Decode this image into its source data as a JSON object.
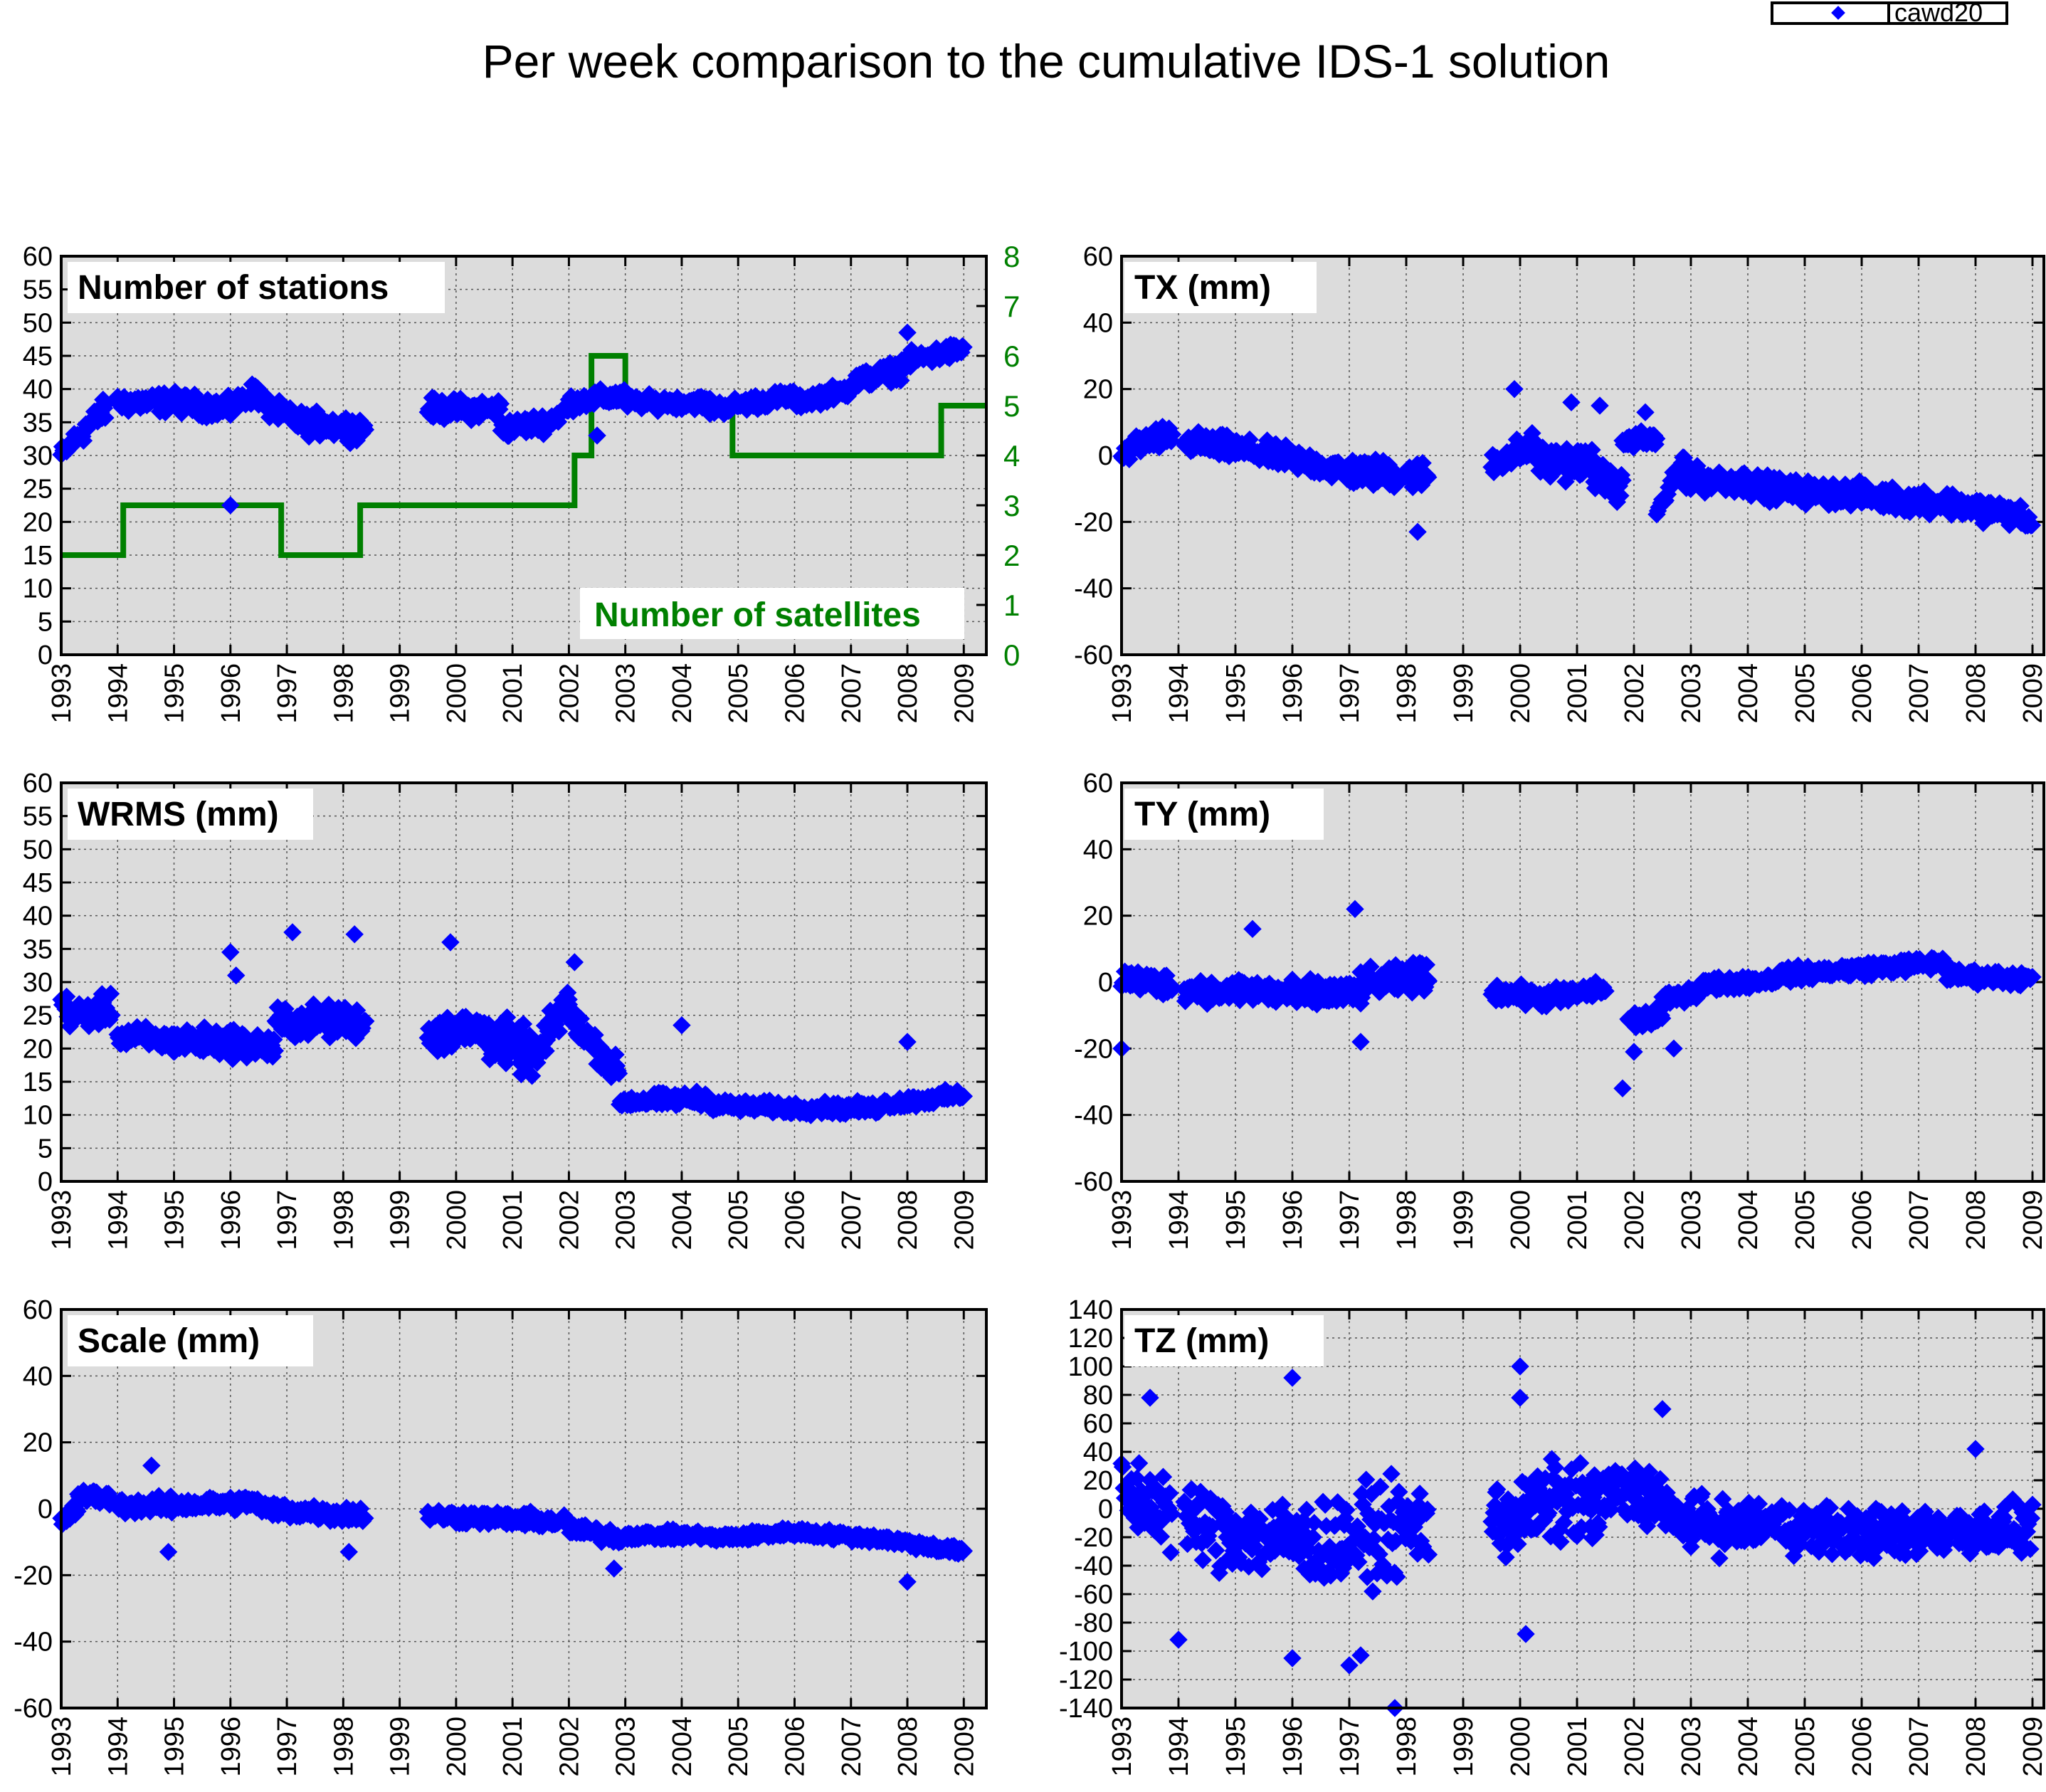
{
  "title": "Per week comparison to the cumulative IDS-1 solution",
  "legend": {
    "label": "cawd20"
  },
  "colors": {
    "points": "#0000ff",
    "satellites": "#008000",
    "plot_bg": "#dcdcdc",
    "grid": "#555555"
  },
  "chart_data": [
    {
      "id": "stations",
      "type": "scatter",
      "label": "Number of stations",
      "xlim": [
        1993,
        2009.4
      ],
      "ylim": [
        0,
        60
      ],
      "x_ticks": [
        "1993",
        "1994",
        "1995",
        "1996",
        "1997",
        "1998",
        "1999",
        "2000",
        "2001",
        "2002",
        "2003",
        "2004",
        "2005",
        "2006",
        "2007",
        "2008",
        "2009"
      ],
      "y_ticks": [
        0,
        5,
        10,
        15,
        20,
        25,
        30,
        35,
        40,
        45,
        50,
        55,
        60
      ],
      "segments": [
        {
          "x0": 1993.0,
          "x1": 1993.3,
          "y0": 30,
          "y1": 33,
          "spread": 2
        },
        {
          "x0": 1993.3,
          "x1": 1993.8,
          "y0": 33,
          "y1": 37,
          "spread": 2.5
        },
        {
          "x0": 1994.0,
          "x1": 1995.0,
          "y0": 38,
          "y1": 38,
          "spread": 2.2
        },
        {
          "x0": 1995.0,
          "x1": 1996.0,
          "y0": 38,
          "y1": 37,
          "spread": 2.2
        },
        {
          "x0": 1996.0,
          "x1": 1996.5,
          "y0": 37,
          "y1": 40,
          "spread": 2.2
        },
        {
          "x0": 1996.5,
          "x1": 1997.2,
          "y0": 38,
          "y1": 35,
          "spread": 2.2
        },
        {
          "x0": 1997.2,
          "x1": 1998.4,
          "y0": 35,
          "y1": 34,
          "spread": 2.5
        },
        {
          "x0": 1999.5,
          "x1": 2000.8,
          "y0": 37,
          "y1": 37,
          "spread": 2.2
        },
        {
          "x0": 2000.8,
          "x1": 2001.6,
          "y0": 34,
          "y1": 35,
          "spread": 2
        },
        {
          "x0": 2001.6,
          "x1": 2002.0,
          "y0": 35,
          "y1": 37,
          "spread": 2
        },
        {
          "x0": 2002.0,
          "x1": 2003.0,
          "y0": 38,
          "y1": 39,
          "spread": 1.8
        },
        {
          "x0": 2003.0,
          "x1": 2004.5,
          "y0": 38,
          "y1": 38,
          "spread": 1.5
        },
        {
          "x0": 2004.5,
          "x1": 2006.0,
          "y0": 37,
          "y1": 39,
          "spread": 1.6
        },
        {
          "x0": 2006.0,
          "x1": 2007.0,
          "y0": 38,
          "y1": 40,
          "spread": 1.6
        },
        {
          "x0": 2007.0,
          "x1": 2007.9,
          "y0": 41,
          "y1": 43,
          "spread": 2
        },
        {
          "x0": 2007.9,
          "x1": 2009.0,
          "y0": 44,
          "y1": 46,
          "spread": 1.8
        }
      ],
      "outliers": [
        [
          1996.0,
          22.5
        ],
        [
          2002.5,
          33
        ],
        [
          2008.0,
          48.5
        ]
      ],
      "satellites": {
        "label": "Number of satellites",
        "ylim": [
          0,
          8
        ],
        "y_ticks": [
          0,
          1,
          2,
          3,
          4,
          5,
          6,
          7,
          8
        ],
        "steps": [
          [
            1993.0,
            2
          ],
          [
            1994.1,
            3
          ],
          [
            1996.9,
            2
          ],
          [
            1998.3,
            3
          ],
          [
            2002.1,
            4
          ],
          [
            2002.4,
            6
          ],
          [
            2003.0,
            5
          ],
          [
            2004.9,
            4
          ],
          [
            2008.6,
            5
          ],
          [
            2009.4,
            5
          ]
        ]
      }
    },
    {
      "id": "tx",
      "type": "scatter",
      "label": "TX (mm)",
      "xlim": [
        1993,
        2009.2
      ],
      "ylim": [
        -60,
        60
      ],
      "x_ticks": [
        "1993",
        "1994",
        "1995",
        "1996",
        "1997",
        "1998",
        "1999",
        "2000",
        "2001",
        "2002",
        "2003",
        "2004",
        "2005",
        "2006",
        "2007",
        "2008",
        "2009"
      ],
      "y_ticks": [
        -60,
        -40,
        -20,
        0,
        20,
        40,
        60
      ],
      "segments": [
        {
          "x0": 1993.0,
          "x1": 1993.2,
          "y0": 0,
          "y1": 2,
          "spread": 4
        },
        {
          "x0": 1993.2,
          "x1": 1993.9,
          "y0": 3,
          "y1": 6,
          "spread": 5
        },
        {
          "x0": 1994.1,
          "x1": 1995.0,
          "y0": 4,
          "y1": 2,
          "spread": 5
        },
        {
          "x0": 1995.0,
          "x1": 1996.0,
          "y0": 2,
          "y1": -1,
          "spread": 5
        },
        {
          "x0": 1996.0,
          "x1": 1997.0,
          "y0": -1,
          "y1": -5,
          "spread": 5
        },
        {
          "x0": 1997.0,
          "x1": 1998.4,
          "y0": -5,
          "y1": -6,
          "spread": 6
        },
        {
          "x0": 1999.5,
          "x1": 2000.3,
          "y0": -2,
          "y1": 3,
          "spread": 6
        },
        {
          "x0": 2000.3,
          "x1": 2001.3,
          "y0": -2,
          "y1": -2,
          "spread": 7
        },
        {
          "x0": 2001.3,
          "x1": 2001.8,
          "y0": -6,
          "y1": -10,
          "spread": 6
        },
        {
          "x0": 2001.8,
          "x1": 2002.4,
          "y0": 4,
          "y1": 5,
          "spread": 4
        },
        {
          "x0": 2002.4,
          "x1": 2002.9,
          "y0": -18,
          "y1": 0,
          "spread": 3
        },
        {
          "x0": 2002.9,
          "x1": 2004.0,
          "y0": -7,
          "y1": -8,
          "spread": 5
        },
        {
          "x0": 2004.0,
          "x1": 2005.5,
          "y0": -9,
          "y1": -12,
          "spread": 5
        },
        {
          "x0": 2005.5,
          "x1": 2007.0,
          "y0": -11,
          "y1": -14,
          "spread": 5
        },
        {
          "x0": 2007.0,
          "x1": 2008.8,
          "y0": -13,
          "y1": -18,
          "spread": 5
        },
        {
          "x0": 2008.8,
          "x1": 2009.0,
          "y0": -19,
          "y1": -21,
          "spread": 3
        }
      ],
      "outliers": [
        [
          1998.2,
          -23
        ],
        [
          1999.9,
          20
        ],
        [
          2000.9,
          16
        ],
        [
          2001.4,
          15
        ],
        [
          2002.2,
          13
        ]
      ]
    },
    {
      "id": "wrms",
      "type": "scatter",
      "label": "WRMS (mm)",
      "xlim": [
        1993,
        2009.4
      ],
      "ylim": [
        0,
        60
      ],
      "x_ticks": [
        "1993",
        "1994",
        "1995",
        "1996",
        "1997",
        "1998",
        "1999",
        "2000",
        "2001",
        "2002",
        "2003",
        "2004",
        "2005",
        "2006",
        "2007",
        "2008",
        "2009"
      ],
      "y_ticks": [
        0,
        5,
        10,
        15,
        20,
        25,
        30,
        35,
        40,
        45,
        50,
        55,
        60
      ],
      "segments": [
        {
          "x0": 1993.0,
          "x1": 1993.3,
          "y0": 27,
          "y1": 24,
          "spread": 3
        },
        {
          "x0": 1993.3,
          "x1": 1993.9,
          "y0": 25,
          "y1": 26,
          "spread": 3
        },
        {
          "x0": 1994.0,
          "x1": 1995.0,
          "y0": 22,
          "y1": 21,
          "spread": 2.5
        },
        {
          "x0": 1995.0,
          "x1": 1996.0,
          "y0": 21,
          "y1": 21,
          "spread": 3
        },
        {
          "x0": 1996.0,
          "x1": 1996.8,
          "y0": 21,
          "y1": 20,
          "spread": 3
        },
        {
          "x0": 1996.8,
          "x1": 1998.4,
          "y0": 24,
          "y1": 24,
          "spread": 3.5
        },
        {
          "x0": 1999.5,
          "x1": 2000.5,
          "y0": 22,
          "y1": 23,
          "spread": 4
        },
        {
          "x0": 2000.5,
          "x1": 2001.4,
          "y0": 22,
          "y1": 19,
          "spread": 5
        },
        {
          "x0": 2001.4,
          "x1": 2002.0,
          "y0": 18,
          "y1": 28,
          "spread": 4
        },
        {
          "x0": 2002.0,
          "x1": 2002.9,
          "y0": 25,
          "y1": 16,
          "spread": 3
        },
        {
          "x0": 2002.9,
          "x1": 2004.5,
          "y0": 12,
          "y1": 12.5,
          "spread": 1.5
        },
        {
          "x0": 2004.5,
          "x1": 2006.0,
          "y0": 11.5,
          "y1": 11,
          "spread": 1.3
        },
        {
          "x0": 2006.0,
          "x1": 2007.5,
          "y0": 11,
          "y1": 11,
          "spread": 1.3
        },
        {
          "x0": 2007.5,
          "x1": 2009.0,
          "y0": 11.5,
          "y1": 13,
          "spread": 1.3
        }
      ],
      "outliers": [
        [
          1996.0,
          34.5
        ],
        [
          1996.1,
          31
        ],
        [
          1997.1,
          37.5
        ],
        [
          1998.2,
          37.2
        ],
        [
          1999.9,
          36
        ],
        [
          2002.1,
          33
        ],
        [
          2004.0,
          23.5
        ],
        [
          2008.0,
          21
        ]
      ]
    },
    {
      "id": "ty",
      "type": "scatter",
      "label": "TY (mm)",
      "xlim": [
        1993,
        2009.2
      ],
      "ylim": [
        -60,
        60
      ],
      "x_ticks": [
        "1993",
        "1994",
        "1995",
        "1996",
        "1997",
        "1998",
        "1999",
        "2000",
        "2001",
        "2002",
        "2003",
        "2004",
        "2005",
        "2006",
        "2007",
        "2008",
        "2009"
      ],
      "y_ticks": [
        -60,
        -40,
        -20,
        0,
        20,
        40,
        60
      ],
      "segments": [
        {
          "x0": 1993.0,
          "x1": 1993.9,
          "y0": 1,
          "y1": -1,
          "spread": 5
        },
        {
          "x0": 1994.1,
          "x1": 1995.0,
          "y0": -2,
          "y1": -3,
          "spread": 5
        },
        {
          "x0": 1995.0,
          "x1": 1996.2,
          "y0": -2,
          "y1": -4,
          "spread": 6
        },
        {
          "x0": 1996.2,
          "x1": 1997.2,
          "y0": -4,
          "y1": -3,
          "spread": 6
        },
        {
          "x0": 1997.2,
          "x1": 1998.4,
          "y0": -1,
          "y1": 2,
          "spread": 6
        },
        {
          "x0": 1999.5,
          "x1": 2000.5,
          "y0": -3,
          "y1": -5,
          "spread": 4
        },
        {
          "x0": 2000.5,
          "x1": 2001.5,
          "y0": -5,
          "y1": -2,
          "spread": 4
        },
        {
          "x0": 2001.9,
          "x1": 2002.5,
          "y0": -12,
          "y1": -10,
          "spread": 4
        },
        {
          "x0": 2002.5,
          "x1": 2003.2,
          "y0": -6,
          "y1": -2,
          "spread": 3
        },
        {
          "x0": 2003.2,
          "x1": 2004.5,
          "y0": -1,
          "y1": 1,
          "spread": 3
        },
        {
          "x0": 2004.5,
          "x1": 2006.0,
          "y0": 2,
          "y1": 4,
          "spread": 3
        },
        {
          "x0": 2006.0,
          "x1": 2007.5,
          "y0": 4,
          "y1": 6,
          "spread": 3
        },
        {
          "x0": 2007.5,
          "x1": 2009.0,
          "y0": 2,
          "y1": 1,
          "spread": 3
        }
      ],
      "outliers": [
        [
          1993.0,
          -20
        ],
        [
          1995.3,
          16
        ],
        [
          1997.1,
          22
        ],
        [
          1997.2,
          -18
        ],
        [
          2001.8,
          -32
        ],
        [
          2002.0,
          -21
        ],
        [
          2002.7,
          -20
        ]
      ]
    },
    {
      "id": "scale",
      "type": "scatter",
      "label": "Scale (mm)",
      "xlim": [
        1993,
        2009.4
      ],
      "ylim": [
        -60,
        60
      ],
      "x_ticks": [
        "1993",
        "1994",
        "1995",
        "1996",
        "1997",
        "1998",
        "1999",
        "2000",
        "2001",
        "2002",
        "2003",
        "2004",
        "2005",
        "2006",
        "2007",
        "2008",
        "2009"
      ],
      "y_ticks": [
        -60,
        -40,
        -20,
        0,
        20,
        40,
        60
      ],
      "segments": [
        {
          "x0": 1993.0,
          "x1": 1993.3,
          "y0": -4,
          "y1": 0,
          "spread": 3
        },
        {
          "x0": 1993.3,
          "x1": 1993.9,
          "y0": 4,
          "y1": 3,
          "spread": 3
        },
        {
          "x0": 1994.0,
          "x1": 1995.0,
          "y0": 1,
          "y1": 1,
          "spread": 3.5
        },
        {
          "x0": 1995.0,
          "x1": 1996.5,
          "y0": 1,
          "y1": 2,
          "spread": 3
        },
        {
          "x0": 1996.5,
          "x1": 1998.4,
          "y0": 0,
          "y1": -2,
          "spread": 3.5
        },
        {
          "x0": 1999.5,
          "x1": 2000.8,
          "y0": -2,
          "y1": -3,
          "spread": 3
        },
        {
          "x0": 2000.8,
          "x1": 2002.0,
          "y0": -3,
          "y1": -4,
          "spread": 3
        },
        {
          "x0": 2002.0,
          "x1": 2003.0,
          "y0": -6,
          "y1": -9,
          "spread": 3
        },
        {
          "x0": 2003.0,
          "x1": 2004.5,
          "y0": -8,
          "y1": -8,
          "spread": 2
        },
        {
          "x0": 2004.5,
          "x1": 2006.0,
          "y0": -9,
          "y1": -7,
          "spread": 2
        },
        {
          "x0": 2006.0,
          "x1": 2007.5,
          "y0": -7,
          "y1": -9,
          "spread": 2
        },
        {
          "x0": 2007.5,
          "x1": 2009.0,
          "y0": -9,
          "y1": -13,
          "spread": 2
        }
      ],
      "outliers": [
        [
          1994.6,
          13
        ],
        [
          1994.9,
          -13
        ],
        [
          1998.1,
          -13
        ],
        [
          2002.8,
          -18
        ],
        [
          2008.0,
          -22
        ]
      ]
    },
    {
      "id": "tz",
      "type": "scatter",
      "label": "TZ (mm)",
      "xlim": [
        1993,
        2009.2
      ],
      "ylim": [
        -140,
        140
      ],
      "x_ticks": [
        "1993",
        "1994",
        "1995",
        "1996",
        "1997",
        "1998",
        "1999",
        "2000",
        "2001",
        "2002",
        "2003",
        "2004",
        "2005",
        "2006",
        "2007",
        "2008",
        "2009"
      ],
      "y_ticks": [
        -140,
        -120,
        -100,
        -80,
        -60,
        -40,
        -20,
        0,
        20,
        40,
        60,
        80,
        100,
        120,
        140
      ],
      "segments": [
        {
          "x0": 1993.0,
          "x1": 1993.9,
          "y0": 10,
          "y1": 0,
          "spread": 40
        },
        {
          "x0": 1994.1,
          "x1": 1995.5,
          "y0": -10,
          "y1": -20,
          "spread": 40
        },
        {
          "x0": 1995.5,
          "x1": 1996.7,
          "y0": -20,
          "y1": -25,
          "spread": 40
        },
        {
          "x0": 1996.7,
          "x1": 1998.4,
          "y0": -25,
          "y1": -10,
          "spread": 45
        },
        {
          "x0": 1999.5,
          "x1": 2000.5,
          "y0": -10,
          "y1": 0,
          "spread": 40
        },
        {
          "x0": 2000.5,
          "x1": 2001.5,
          "y0": 5,
          "y1": 0,
          "spread": 40
        },
        {
          "x0": 2001.5,
          "x1": 2002.5,
          "y0": 10,
          "y1": 10,
          "spread": 30
        },
        {
          "x0": 2002.5,
          "x1": 2004.0,
          "y0": -5,
          "y1": -15,
          "spread": 25
        },
        {
          "x0": 2004.0,
          "x1": 2005.5,
          "y0": -10,
          "y1": -15,
          "spread": 25
        },
        {
          "x0": 2005.5,
          "x1": 2007.0,
          "y0": -15,
          "y1": -20,
          "spread": 25
        },
        {
          "x0": 2007.0,
          "x1": 2009.0,
          "y0": -15,
          "y1": -15,
          "spread": 25
        }
      ],
      "outliers": [
        [
          1993.5,
          78
        ],
        [
          1996.0,
          92
        ],
        [
          1996.0,
          -105
        ],
        [
          1994.0,
          -92
        ],
        [
          1997.0,
          -110
        ],
        [
          1997.2,
          -103
        ],
        [
          1997.8,
          -140
        ],
        [
          2000.0,
          100
        ],
        [
          2000.0,
          78
        ],
        [
          2000.1,
          -88
        ],
        [
          2002.5,
          70
        ],
        [
          2008.0,
          42
        ]
      ]
    }
  ]
}
